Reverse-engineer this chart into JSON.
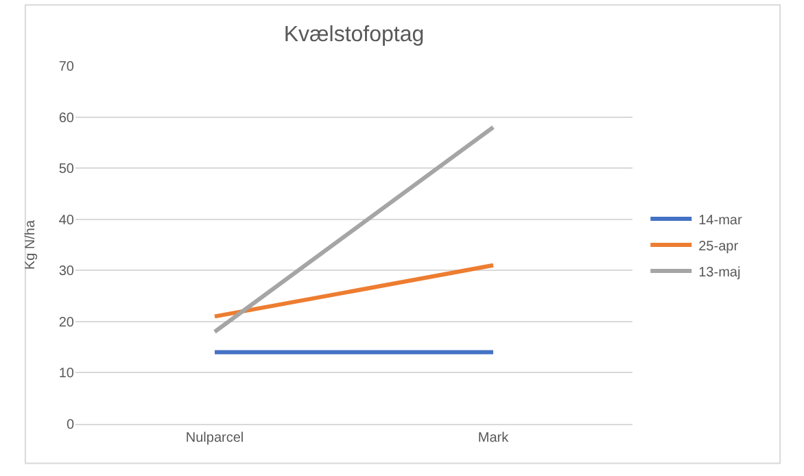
{
  "chart_data": {
    "type": "line",
    "title": "Kvælstofoptag",
    "ylabel": "Kg N/ha",
    "categories": [
      "Nulparcel",
      "Mark"
    ],
    "series": [
      {
        "name": "14-mar",
        "color": "#4472c4",
        "values": [
          14,
          14
        ]
      },
      {
        "name": "25-apr",
        "color": "#ed7d31",
        "values": [
          21,
          31
        ]
      },
      {
        "name": "13-maj",
        "color": "#a5a5a5",
        "values": [
          18,
          58
        ]
      }
    ],
    "ylim": [
      0,
      70
    ],
    "yticks": [
      0,
      10,
      20,
      30,
      40,
      50,
      60,
      70
    ],
    "grid": "y",
    "legend": "right",
    "marker": "none",
    "line_style": "solid"
  }
}
